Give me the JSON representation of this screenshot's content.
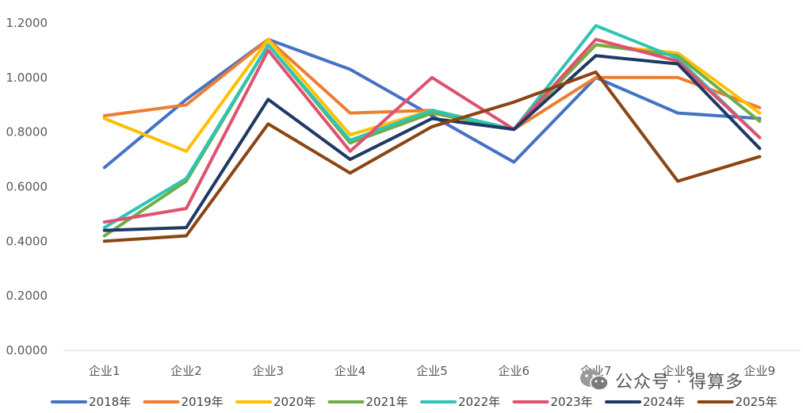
{
  "chart_data": {
    "type": "line",
    "title": "",
    "xlabel": "",
    "ylabel": "",
    "ylim": [
      0,
      1.2
    ],
    "y_ticks": [
      "0.0000",
      "0.2000",
      "0.4000",
      "0.6000",
      "0.8000",
      "1.0000",
      "1.2000"
    ],
    "grid": false,
    "legend_position": "bottom",
    "categories": [
      "企业1",
      "企业2",
      "企业3",
      "企业4",
      "企业5",
      "企业6",
      "企业7",
      "企业8",
      "企业9"
    ],
    "series": [
      {
        "name": "2018年",
        "color": "#4472C4",
        "values": [
          0.67,
          0.92,
          1.14,
          1.03,
          0.86,
          0.69,
          1.0,
          0.87,
          0.85
        ]
      },
      {
        "name": "2019年",
        "color": "#ED7D31",
        "values": [
          0.86,
          0.9,
          1.14,
          0.87,
          0.88,
          0.81,
          1.0,
          1.0,
          0.89
        ]
      },
      {
        "name": "2020年",
        "color": "#FFC000",
        "values": [
          0.85,
          0.73,
          1.14,
          0.79,
          0.88,
          0.81,
          1.12,
          1.09,
          0.87
        ]
      },
      {
        "name": "2021年",
        "color": "#70AD47",
        "values": [
          0.42,
          0.62,
          1.12,
          0.76,
          0.87,
          0.81,
          1.12,
          1.08,
          0.84
        ]
      },
      {
        "name": "2022年",
        "color": "#2EC4B6",
        "values": [
          0.45,
          0.63,
          1.12,
          0.77,
          0.88,
          0.81,
          1.19,
          1.07,
          0.78
        ]
      },
      {
        "name": "2023年",
        "color": "#E05170",
        "values": [
          0.47,
          0.52,
          1.1,
          0.73,
          1.0,
          0.81,
          1.14,
          1.06,
          0.78
        ]
      },
      {
        "name": "2024年",
        "color": "#1F3864",
        "values": [
          0.44,
          0.45,
          0.92,
          0.7,
          0.85,
          0.81,
          1.08,
          1.05,
          0.74
        ]
      },
      {
        "name": "2025年",
        "color": "#8B4513",
        "values": [
          0.4,
          0.42,
          0.83,
          0.65,
          0.82,
          0.91,
          1.02,
          0.62,
          0.71
        ]
      }
    ]
  },
  "watermark": {
    "icon": "wechat-icon",
    "text": "公众号 · 得算多"
  }
}
